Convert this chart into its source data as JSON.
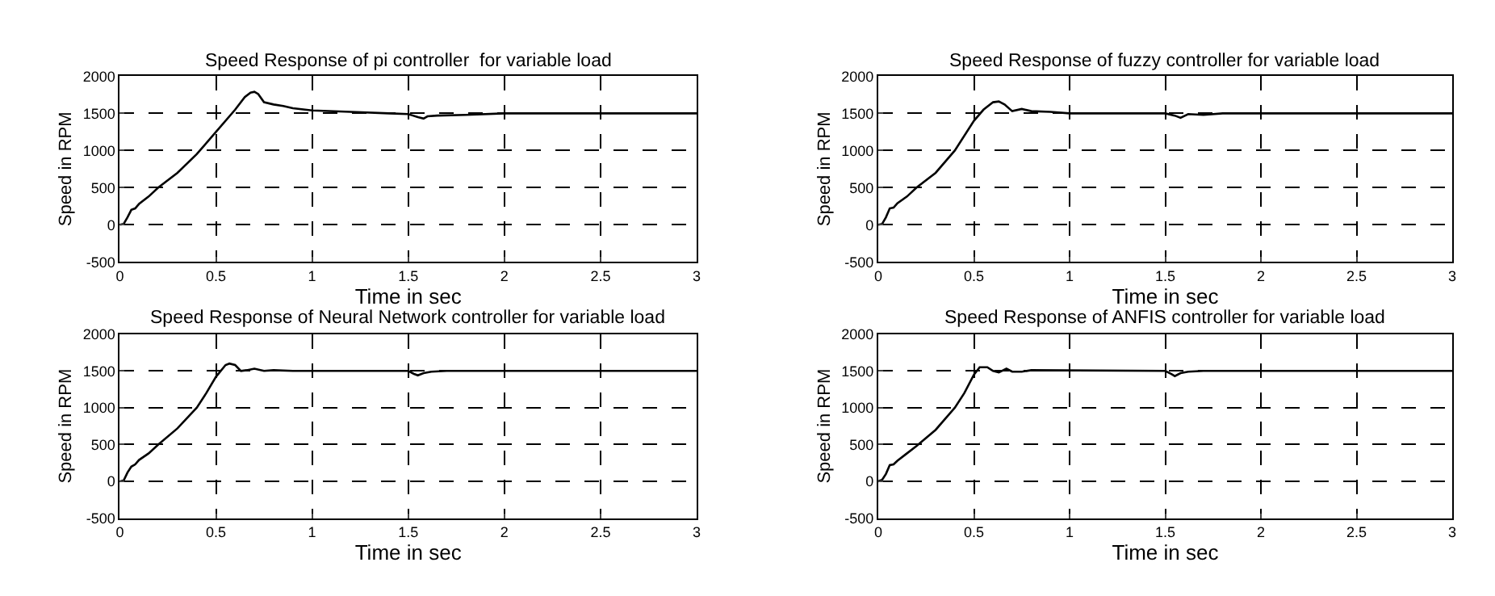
{
  "chart_data": [
    {
      "type": "line",
      "title": "Speed Response of pi controller  for variable load",
      "xlabel": "Time in sec",
      "ylabel": "Speed in RPM",
      "xlim": [
        0,
        3
      ],
      "xticks": [
        0,
        0.5,
        1,
        1.5,
        2,
        2.5,
        3
      ],
      "ylim": [
        -500,
        2000
      ],
      "yticks": [
        -500,
        0,
        500,
        1000,
        1500,
        2000
      ],
      "grid": true,
      "line_style": "solid",
      "marker": "none",
      "series": [
        {
          "color": "#000000",
          "x": [
            0,
            0.02,
            0.04,
            0.06,
            0.08,
            0.1,
            0.15,
            0.2,
            0.3,
            0.4,
            0.5,
            0.6,
            0.65,
            0.68,
            0.7,
            0.72,
            0.75,
            0.8,
            0.85,
            0.9,
            1.0,
            1.2,
            1.4,
            1.5,
            1.55,
            1.58,
            1.6,
            1.65,
            1.8,
            2,
            2.5,
            3
          ],
          "values": [
            0,
            10,
            100,
            200,
            220,
            280,
            380,
            500,
            700,
            950,
            1250,
            1550,
            1720,
            1780,
            1790,
            1760,
            1650,
            1620,
            1600,
            1570,
            1540,
            1520,
            1500,
            1490,
            1450,
            1430,
            1460,
            1470,
            1480,
            1500,
            1500,
            1500
          ]
        }
      ]
    },
    {
      "type": "line",
      "title": "Speed Response of fuzzy controller for variable load",
      "xlabel": "Time in sec",
      "ylabel": "Speed in RPM",
      "xlim": [
        0,
        3
      ],
      "xticks": [
        0,
        0.5,
        1,
        1.5,
        2,
        2.5,
        3
      ],
      "ylim": [
        -500,
        2000
      ],
      "yticks": [
        -500,
        0,
        500,
        1000,
        1500,
        2000
      ],
      "grid": true,
      "line_style": "solid",
      "marker": "none",
      "series": [
        {
          "color": "#000000",
          "x": [
            0,
            0.02,
            0.04,
            0.06,
            0.08,
            0.1,
            0.15,
            0.2,
            0.3,
            0.4,
            0.5,
            0.55,
            0.6,
            0.63,
            0.66,
            0.7,
            0.75,
            0.8,
            0.9,
            1,
            1.5,
            1.55,
            1.58,
            1.62,
            1.7,
            1.8,
            2,
            3
          ],
          "values": [
            0,
            10,
            100,
            220,
            230,
            290,
            380,
            500,
            700,
            1000,
            1400,
            1550,
            1650,
            1660,
            1620,
            1530,
            1560,
            1530,
            1520,
            1500,
            1500,
            1470,
            1440,
            1490,
            1480,
            1500,
            1500,
            1500
          ]
        }
      ]
    },
    {
      "type": "line",
      "title": "Speed Response of Neural Network controller for variable load",
      "xlabel": "Time in sec",
      "ylabel": "Speed in RPM",
      "xlim": [
        0,
        3
      ],
      "xticks": [
        0,
        0.5,
        1,
        1.5,
        2,
        2.5,
        3
      ],
      "ylim": [
        -500,
        2000
      ],
      "yticks": [
        -500,
        0,
        500,
        1000,
        1500,
        2000
      ],
      "grid": true,
      "line_style": "solid",
      "marker": "none",
      "series": [
        {
          "color": "#000000",
          "x": [
            0,
            0.02,
            0.04,
            0.06,
            0.08,
            0.1,
            0.15,
            0.2,
            0.3,
            0.4,
            0.45,
            0.5,
            0.55,
            0.57,
            0.6,
            0.63,
            0.66,
            0.7,
            0.75,
            0.8,
            0.9,
            1.5,
            1.53,
            1.55,
            1.58,
            1.62,
            1.7,
            2,
            3
          ],
          "values": [
            0,
            10,
            120,
            200,
            230,
            290,
            380,
            500,
            720,
            1000,
            1200,
            1420,
            1580,
            1600,
            1580,
            1500,
            1510,
            1530,
            1500,
            1510,
            1500,
            1500,
            1460,
            1440,
            1470,
            1490,
            1500,
            1500,
            1500
          ]
        }
      ]
    },
    {
      "type": "line",
      "title": "Speed Response of ANFIS controller for variable load",
      "xlabel": "Time in sec",
      "ylabel": "Speed in RPM",
      "xlim": [
        0,
        3
      ],
      "xticks": [
        0,
        0.5,
        1,
        1.5,
        2,
        2.5,
        3
      ],
      "ylim": [
        -500,
        2000
      ],
      "yticks": [
        -500,
        0,
        500,
        1000,
        1500,
        2000
      ],
      "grid": true,
      "line_style": "solid",
      "marker": "none",
      "series": [
        {
          "color": "#000000",
          "x": [
            0,
            0.02,
            0.04,
            0.06,
            0.08,
            0.1,
            0.15,
            0.2,
            0.3,
            0.4,
            0.45,
            0.5,
            0.53,
            0.57,
            0.6,
            0.63,
            0.67,
            0.7,
            0.75,
            0.8,
            1.5,
            1.53,
            1.55,
            1.58,
            1.62,
            1.7,
            2,
            3
          ],
          "values": [
            0,
            20,
            100,
            220,
            230,
            280,
            380,
            480,
            700,
            1000,
            1200,
            1450,
            1550,
            1550,
            1500,
            1480,
            1530,
            1490,
            1490,
            1510,
            1500,
            1460,
            1430,
            1470,
            1490,
            1500,
            1500,
            1500
          ]
        }
      ]
    }
  ]
}
